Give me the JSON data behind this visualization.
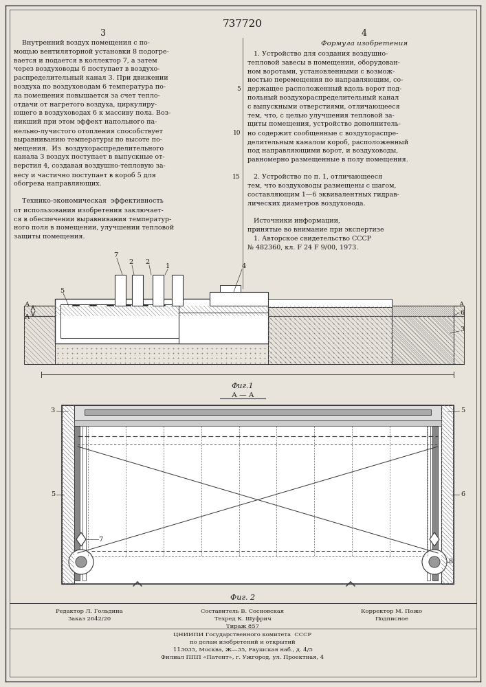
{
  "patent_number": "737720",
  "page_left": "3",
  "page_right": "4",
  "bg_color": "#e8e4dc",
  "text_color": "#1a1a1a",
  "line_color": "#333333",
  "left_text_lines": [
    "    Внутренний воздух помещения с по-",
    "мощью вентиляторной установки 8 подогре-",
    "вается и подается в коллектор 7, а затем",
    "через воздуховоды 6 поступает в воздухо-",
    "распределительный канал 3. При движении",
    "воздуха по воздуховодам 6 температура по-",
    "ла помещения повышается за счет тепло-",
    "отдачи от нагретого воздуха, циркулиру-",
    "ющего в воздуховодах 6 к массиву пола. Воз-",
    "никший при этом эффект напольного па-",
    "нельно-лучистого отопления способствует",
    "выравниванию температуры по высоте по-",
    "мещения.  Из  воздухораспределительного",
    "канала 3 воздух поступает в выпускные от-",
    "верстия 4, создавая воздушно-тепловую за-",
    "весу и частично поступает в короб 5 для",
    "обогрева направляющих.",
    "",
    "    Технико-экономическая  эффективность",
    "от использования изобретения заключает-",
    "ся в обеспечении выравнивания температур-",
    "ного поля в помещении, улучшении тепловой",
    "защиты помещения."
  ],
  "right_header": "Формула изобретения",
  "right_text_lines": [
    "   1. Устройство для создания воздушно-",
    "тепловой завесы в помещении, оборудован-",
    "ном воротами, установленными с возмож-",
    "ностью перемещения по направляющим, со-",
    "держащее расположенный вдоль ворот под-",
    "польный воздухораспределительный канал",
    "с выпускными отверстиями, отличающееся",
    "тем, что, с целью улучшения тепловой за-",
    "щиты помещения, устройство дополнитель-",
    "но содержит сообщенные с воздухораспре-",
    "делительным каналом короб, расположенный",
    "под направляющими ворот, и воздуховоды,",
    "равномерно размещенные в полу помещения.",
    "",
    "   2. Устройство по п. 1, отличающееся",
    "тем, что воздуховоды размещены с шагом,",
    "составляющим 1—6 эквивалентных гидрав-",
    "лических диаметров воздуховода.",
    "",
    "   Источники информации,",
    "принятые во внимание при экспертизе",
    "   1. Авторское свидетельство СССР",
    "№ 482360, кл. F 24 F 9/00, 1973."
  ],
  "fig1_label": "Фиг.1",
  "fig2_label": "Фиг. 2",
  "section_label": "А — А",
  "footer_editor": "Редактор Л. Гольдина",
  "footer_order": "Заказ 2642/20",
  "footer_composer": "Составитель В. Сосновская",
  "footer_tech": "Техред К. Шуфрич",
  "footer_circ": "Тираж 857",
  "footer_corrector": "Корректор М. Пожо",
  "footer_sub": "Подписное",
  "footer_cniipi1": "ЦНИИПИ Государственного комитета  СССР",
  "footer_cniipi2": "по делам изобретений и открытий",
  "footer_cniipi3": "113035, Москва, Ж—35, Раушская наб., д. 4/5",
  "footer_cniipi4": "Филиал ППП «Патент», г. Ужгород, ул. Проектная, 4"
}
